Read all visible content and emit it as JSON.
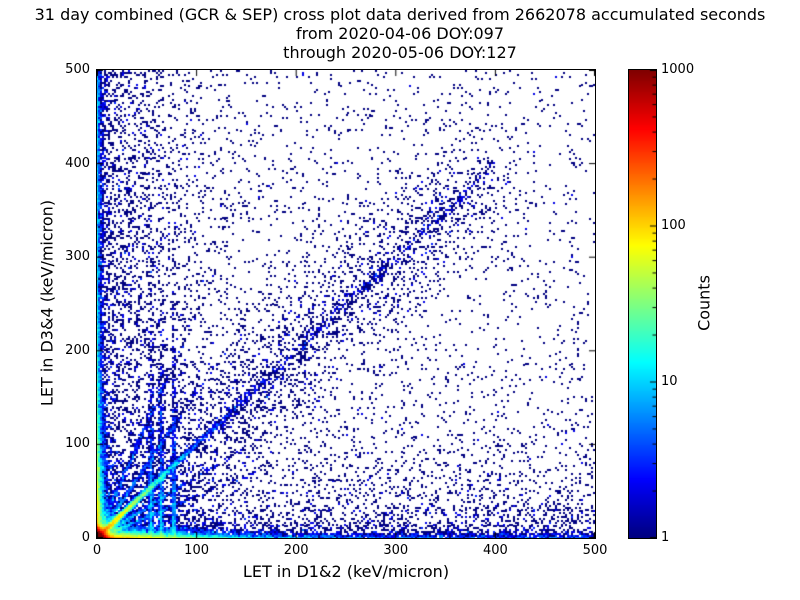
{
  "figure": {
    "title_lines": [
      "31 day combined (GCR & SEP) cross plot data derived from 2662078 accumulated seconds",
      "from 2020-04-06 DOY:097",
      "through 2020-05-06 DOY:127"
    ],
    "background_color": "#ffffff"
  },
  "chart_data": {
    "type": "scatter",
    "subtype": "density-crossplot",
    "title": "31 day combined (GCR & SEP) cross plot data derived from 2662078 accumulated seconds from 2020-04-06 DOY:097 through 2020-05-06 DOY:127",
    "xlabel": "LET in D1&2 (keV/micron)",
    "ylabel": "LET in D3&4 (keV/micron)",
    "axes": {
      "range": [
        0,
        500
      ],
      "xlim": [
        0,
        500
      ],
      "ylim": [
        0,
        500
      ],
      "ticks": [
        0,
        100,
        200,
        300,
        400,
        500
      ],
      "grid": false
    },
    "colorbar": {
      "label": "Counts",
      "scale": "log",
      "min": 1,
      "max": 1000,
      "ticks": [
        1,
        10,
        100,
        1000
      ],
      "colormap": "jet"
    },
    "distribution_notes": [
      "very dense hot (red/yellow) core at the origin below ~10 keV/micron",
      "bright diagonal ridge along y=x fading from yellow/green to blue out to ~150",
      "sparse blue diagonal cloud continuing to ~380",
      "dense horizontal band along y~0 and vertical band along x~0",
      "faint vertical streaks near x=55-80 and faint rays fanning from origin",
      "sparse dark-blue single-count speckle across the full plane"
    ],
    "generation": {
      "bins": 250,
      "seed": 42,
      "clusters": [
        {
          "name": "origin-core",
          "type": "indep",
          "n": 60000,
          "x": {
            "dist": "exp",
            "scale": 2.5
          },
          "y": {
            "dist": "exp",
            "scale": 2.5
          }
        },
        {
          "name": "main-diagonal",
          "type": "diag",
          "n": 8000,
          "slope": 1,
          "sigma": 1.5,
          "t": {
            "dist": "exp",
            "scale": 25
          }
        },
        {
          "name": "diagonal-tail",
          "type": "diag",
          "n": 500,
          "slope": 1,
          "sigma": 3,
          "t": {
            "dist": "uniform",
            "min": 100,
            "max": 400
          }
        },
        {
          "name": "diagonal-cloud",
          "type": "diag",
          "n": 2200,
          "slope": 1,
          "sigma": 28,
          "t": {
            "dist": "uniform",
            "min": 0,
            "max": 380
          }
        },
        {
          "name": "bottom-band",
          "type": "indep",
          "n": 10000,
          "x": {
            "dist": "exp",
            "scale": 45
          },
          "y": {
            "dist": "exp",
            "scale": 3
          }
        },
        {
          "name": "left-band",
          "type": "indep",
          "n": 8000,
          "x": {
            "dist": "exp",
            "scale": 3
          },
          "y": {
            "dist": "exp",
            "scale": 60
          }
        },
        {
          "name": "left-column",
          "type": "indep",
          "n": 4000,
          "x": {
            "dist": "exp",
            "scale": 2
          },
          "y": {
            "dist": "uniform",
            "min": 0,
            "max": 500
          }
        },
        {
          "name": "bottom-row",
          "type": "indep",
          "n": 1800,
          "x": {
            "dist": "uniform",
            "min": 0,
            "max": 500
          },
          "y": {
            "dist": "exp",
            "scale": 3
          }
        },
        {
          "name": "vertical-streaks",
          "type": "streaks",
          "n": 2100,
          "centers": [
            55,
            65,
            78
          ],
          "sigma": 1.3,
          "y": {
            "dist": "exp",
            "scale": 70
          }
        },
        {
          "name": "ray-a",
          "type": "diag",
          "n": 700,
          "slope": 0.45,
          "sigma": 1.2,
          "t": {
            "dist": "exp",
            "scale": 35
          }
        },
        {
          "name": "ray-b",
          "type": "diag",
          "n": 700,
          "slope": 0.65,
          "sigma": 1.2,
          "t": {
            "dist": "exp",
            "scale": 35
          }
        },
        {
          "name": "ray-c",
          "type": "diag",
          "n": 700,
          "slope": 1.55,
          "sigma": 1.2,
          "t": {
            "dist": "exp",
            "scale": 35
          }
        },
        {
          "name": "ray-d",
          "type": "diag",
          "n": 600,
          "slope": 2.4,
          "sigma": 1.2,
          "t": {
            "dist": "exp",
            "scale": 30
          }
        },
        {
          "name": "left-cloud",
          "type": "indep",
          "n": 3000,
          "x": {
            "dist": "exp",
            "scale": 45
          },
          "y": {
            "dist": "uniform",
            "min": 0,
            "max": 500
          }
        },
        {
          "name": "bottom-cloud",
          "type": "indep",
          "n": 2200,
          "x": {
            "dist": "uniform",
            "min": 0,
            "max": 500
          },
          "y": {
            "dist": "exp",
            "scale": 45
          }
        },
        {
          "name": "background",
          "type": "indep",
          "n": 2600,
          "x": {
            "dist": "uniform",
            "min": 0,
            "max": 500
          },
          "y": {
            "dist": "uniform",
            "min": 0,
            "max": 500
          }
        }
      ]
    }
  }
}
